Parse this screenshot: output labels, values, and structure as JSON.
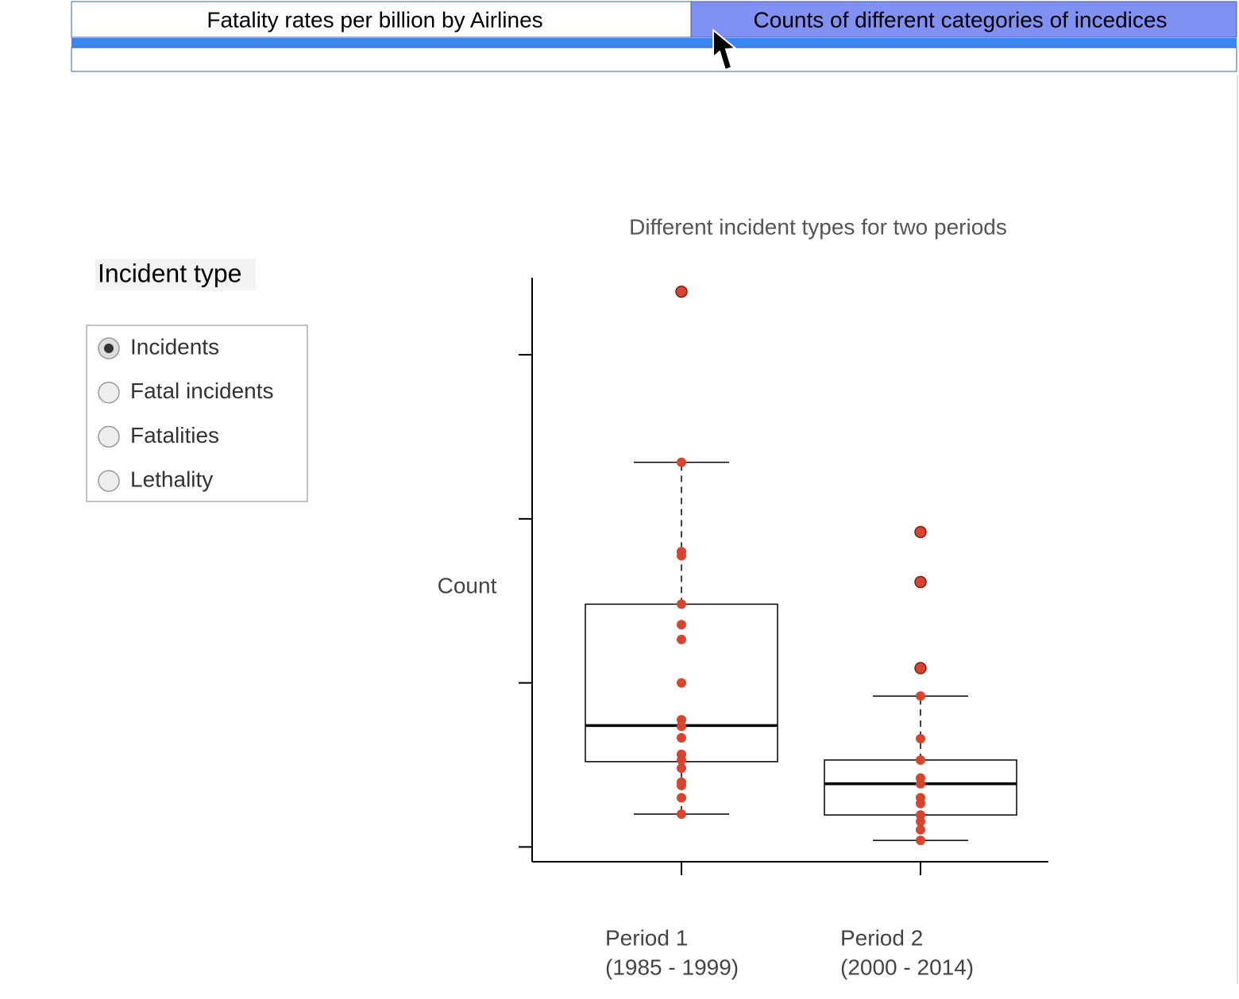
{
  "tabs": [
    "Fatality rates per billion by Airlines",
    "Counts of different categories of incedices"
  ],
  "active_tab": 1,
  "sidebar": {
    "title": "Incident type",
    "options": [
      "Incidents",
      "Fatal incidents",
      "Fatalities",
      "Lethality"
    ],
    "selected": 0
  },
  "chart_data": {
    "type": "box",
    "title": "Different incident types for two periods",
    "y_label": "Count",
    "categories": [
      [
        "Period 1",
        "(1985 - 1999)"
      ],
      [
        "Period 2",
        "(2000 - 2014)"
      ]
    ],
    "ylim": [
      -1.8,
      69.4
    ],
    "yticks": [
      0,
      20,
      40,
      60
    ],
    "box_color": "#000000",
    "point_color": "#d9442e",
    "boxes": [
      {
        "whisker_low": 4.0,
        "q1": 10.4,
        "median": 14.8,
        "q3": 29.6,
        "whisker_high": 46.9
      },
      {
        "whisker_low": 0.8,
        "q1": 3.9,
        "median": 7.7,
        "q3": 10.6,
        "whisker_high": 18.4
      }
    ],
    "points": [
      [
        67.7,
        46.9,
        36.0,
        35.5,
        29.6,
        27.1,
        25.3,
        20.0,
        15.5,
        14.7,
        13.3,
        11.3,
        10.6,
        9.6,
        7.9,
        7.5,
        6.0,
        4.0
      ],
      [
        38.4,
        32.3,
        21.8,
        18.4,
        13.2,
        10.6,
        8.4,
        7.7,
        6.0,
        5.3,
        3.9,
        3.1,
        2.1,
        0.8
      ]
    ]
  }
}
